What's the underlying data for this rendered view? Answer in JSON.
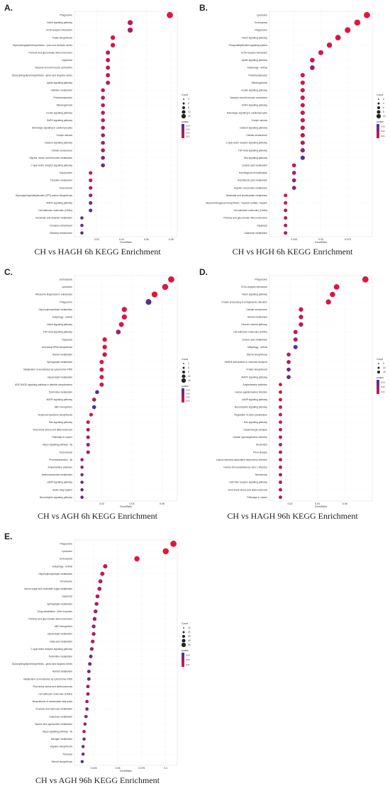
{
  "chart_data": [
    {
      "type": "scatter",
      "panel": "A.",
      "caption": "CH vs HAGH 6h KEGG Enrichment",
      "xlabel": "GeneRatio",
      "xticks": [
        0.02,
        0.04,
        0.06,
        0.08
      ],
      "xlim": [
        0.002,
        0.085
      ],
      "legend_count_title": "Count",
      "legend_count_values": [
        "3",
        "6",
        "9",
        "12",
        "15"
      ],
      "legend_p_title": "pvalue",
      "legend_p_values": [
        "0.04",
        "0.03",
        "0.02",
        "0.01"
      ],
      "categories": [
        "Phagosome",
        "Notch signaling pathway",
        "ECM-receptor interaction",
        "Folate biosynthesis",
        "Glycosphingolipid biosynthesis - lacto and neolacto series",
        "Pentose and glucuronate interconversions",
        "Apoptosis",
        "Vascular smooth muscle contraction",
        "Glycosphingolipid biosynthesis - globo and isoglobo series",
        "Apelin signaling pathway",
        "Histidine metabolism",
        "Phototransduction",
        "Melanogenesis",
        "Insulin signaling pathway",
        "GnRH signaling pathway",
        "Adrenergic signaling in cardiomyocytes",
        "Oocyte meiosis",
        "Calcium signaling pathway",
        "Cellular senescence",
        "Glycine, serine and threonine metabolism",
        "C-type lectin receptor signaling pathway",
        "Gap junction",
        "Thiamine metabolism",
        "Tuberculosis",
        "Glycosylphosphatidylinositol (GPI)-anchor biosynthesis",
        "MAPK signaling pathway",
        "Cell adhesion molecules (CAMs)",
        "Ascorbate and aldarate metabolism",
        "Circadian entrainment",
        "Olfactory transduction"
      ],
      "x": [
        0.079,
        0.047,
        0.047,
        0.033,
        0.033,
        0.029,
        0.029,
        0.029,
        0.029,
        0.029,
        0.025,
        0.025,
        0.025,
        0.025,
        0.025,
        0.025,
        0.025,
        0.025,
        0.025,
        0.025,
        0.025,
        0.015,
        0.015,
        0.015,
        0.015,
        0.015,
        0.015,
        0.008,
        0.008,
        0.008
      ],
      "count": [
        15,
        9,
        9,
        6,
        6,
        5,
        5,
        5,
        5,
        5,
        4,
        4,
        4,
        4,
        4,
        4,
        4,
        4,
        4,
        4,
        4,
        3,
        3,
        3,
        3,
        3,
        3,
        2,
        2,
        2
      ],
      "pvalue": [
        0.001,
        0.01,
        0.02,
        0.005,
        0.005,
        0.01,
        0.01,
        0.01,
        0.01,
        0.015,
        0.01,
        0.015,
        0.015,
        0.015,
        0.015,
        0.02,
        0.02,
        0.02,
        0.02,
        0.03,
        0.035,
        0.01,
        0.01,
        0.015,
        0.02,
        0.03,
        0.04,
        0.04,
        0.04,
        0.045
      ]
    },
    {
      "type": "scatter",
      "panel": "B.",
      "caption": "CH vs HGH 6h KEGG Enrichment",
      "xlabel": "GeneRatio",
      "xticks": [
        0.025,
        0.05,
        0.075
      ],
      "xlim": [
        0.002,
        0.098
      ],
      "legend_count_title": "Count",
      "legend_count_values": [
        "2",
        "4",
        "6",
        "8",
        "10"
      ],
      "legend_p_title": "pvalue",
      "legend_p_values": [
        "0.03",
        "0.02",
        "0.01"
      ],
      "categories": [
        "Lysosome",
        "Endocytosis",
        "Phagosome",
        "Notch signaling pathway",
        "Phosphatidylinositol signaling system",
        "ECM-receptor interaction",
        "Apelin signaling pathway",
        "Autophagy - animal",
        "Phototransduction",
        "Melanogenesis",
        "Insulin signaling pathway",
        "Vascular smooth muscle contraction",
        "GnRH signaling pathway",
        "Adrenergic signaling in cardiomyocytes",
        "Oocyte meiosis",
        "Calcium signaling pathway",
        "Cellular senescence",
        "C-type lectin receptor signaling pathway",
        "TGF-beta signaling pathway",
        "Wnt signaling pathway",
        "Linoleic acid metabolism",
        "Homologous recombination",
        "Arachidonic acid metabolism",
        "Arginine and proline metabolism",
        "Nicotinate and nicotinamide metabolism",
        "Glycosaminoglycan biosynthesis - heparan sulfate / heparin",
        "Cell adhesion molecules (CAMs)",
        "Pentose and glucuronate interconversions",
        "Apoptosis",
        "Galactose metabolism"
      ],
      "x": [
        0.093,
        0.084,
        0.075,
        0.066,
        0.058,
        0.05,
        0.042,
        0.042,
        0.033,
        0.033,
        0.033,
        0.033,
        0.033,
        0.033,
        0.033,
        0.033,
        0.033,
        0.033,
        0.033,
        0.033,
        0.025,
        0.025,
        0.025,
        0.025,
        0.017,
        0.017,
        0.017,
        0.017,
        0.017,
        0.017
      ],
      "count": [
        11,
        10,
        9,
        8,
        7,
        6,
        5,
        5,
        4,
        4,
        4,
        4,
        4,
        4,
        4,
        4,
        4,
        4,
        4,
        4,
        3,
        3,
        3,
        3,
        2,
        2,
        2,
        2,
        2,
        2
      ],
      "pvalue": [
        0.001,
        0.001,
        0.002,
        0.003,
        0.004,
        0.005,
        0.008,
        0.02,
        0.005,
        0.005,
        0.006,
        0.006,
        0.007,
        0.007,
        0.008,
        0.008,
        0.01,
        0.012,
        0.02,
        0.035,
        0.01,
        0.015,
        0.02,
        0.025,
        0.005,
        0.008,
        0.01,
        0.01,
        0.012,
        0.015
      ]
    },
    {
      "type": "scatter",
      "panel": "C.",
      "caption": "CH vs AGH 6h KEGG Enrichment",
      "xlabel": "GeneRatio",
      "xticks": [
        0.02,
        0.04,
        0.06
      ],
      "xlim": [
        0.002,
        0.07
      ],
      "legend_count_title": "Count",
      "legend_count_values": [
        "3",
        "6",
        "9",
        "12",
        "15"
      ],
      "legend_p_title": "pvalue",
      "legend_p_values": [
        "0.04",
        "0.03",
        "0.02",
        "0.01"
      ],
      "categories": [
        "Endocytosis",
        "Lysosome",
        "Ribosome biogenesis in eukaryotes",
        "Phagosome",
        "Glycerophospholipid metabolism",
        "Autophagy - animal",
        "Notch signaling pathway",
        "TGF-beta signaling pathway",
        "Apoptosis",
        "Aminoacyl-tRNA biosynthesis",
        "Retinol metabolism",
        "Sphingolipid metabolism",
        "Metabolism of xenobiotics by cytochrome P450",
        "Glycerolipid metabolism",
        "AGE-RAGE signaling pathway in diabetic complications",
        "Pyrimidine metabolism",
        "MAPK signaling pathway",
        "ABC transporters",
        "Terpenoid backbone biosynthesis",
        "Ras signaling pathway",
        "Fluid shear stress and atherosclerosis",
        "Pathways in cancer",
        "Hippo signaling pathway - fly",
        "Tuberculosis",
        "Phototransduction - fly",
        "Amphetamine addiction",
        "Selenocompound metabolism",
        "cAMP signaling pathway",
        "Sulfur relay system",
        "Neurotrophin signaling pathway"
      ],
      "x": [
        0.066,
        0.062,
        0.055,
        0.051,
        0.035,
        0.035,
        0.033,
        0.031,
        0.022,
        0.022,
        0.022,
        0.02,
        0.02,
        0.02,
        0.02,
        0.017,
        0.015,
        0.015,
        0.013,
        0.011,
        0.011,
        0.011,
        0.011,
        0.011,
        0.007,
        0.007,
        0.007,
        0.007,
        0.007,
        0.007
      ],
      "count": [
        15,
        14,
        13,
        12,
        9,
        9,
        8,
        7,
        6,
        6,
        6,
        5,
        5,
        5,
        5,
        4,
        4,
        4,
        3,
        3,
        3,
        3,
        3,
        3,
        2,
        2,
        2,
        2,
        2,
        2
      ],
      "pvalue": [
        0.001,
        0.001,
        0.001,
        0.04,
        0.002,
        0.002,
        0.005,
        0.02,
        0.003,
        0.003,
        0.004,
        0.005,
        0.006,
        0.006,
        0.007,
        0.035,
        0.015,
        0.04,
        0.005,
        0.01,
        0.015,
        0.015,
        0.02,
        0.02,
        0.02,
        0.025,
        0.025,
        0.03,
        0.03,
        0.035
      ]
    },
    {
      "type": "scatter",
      "panel": "D.",
      "caption": "CH vs HAGH 96h KEGG Enrichment",
      "xlabel": "GeneRatio",
      "xticks": [
        0.02,
        0.04,
        0.06
      ],
      "xlim": [
        0.005,
        0.08
      ],
      "legend_count_title": "Count",
      "legend_count_values": [
        "5",
        "10",
        "15"
      ],
      "legend_p_title": "pvalue",
      "legend_p_values": [
        "0.03",
        "0.02",
        "0.01"
      ],
      "categories": [
        "Phagosome",
        "ECM-receptor interaction",
        "Notch signaling pathway",
        "Protein processing in endoplasmic reticulum",
        "Cellular senescence",
        "Retinol metabolism",
        "Fanconi anemia pathway",
        "Cell adhesion molecules (CAMs)",
        "Linoleic acid metabolism",
        "Mitophagy - animal",
        "Steroid biosynthesis",
        "SNARE interactions in vesicular transport",
        "Protein biosynthesis",
        "MAPK signaling pathway",
        "Amphetamine addiction",
        "Human papillomavirus infection",
        "cAMP signaling pathway",
        "Neurotrophin signaling pathway",
        "Regulation of actin cytoskeleton",
        "Ras signaling pathway",
        "Dopaminergic synapse",
        "Human cytomegalovirus infection",
        "Alcoholism",
        "Prion disease",
        "Kaposi sarcoma-associated herpesvirus infection",
        "Human immunodeficiency virus 1 infection",
        "Necroptosis",
        "NOD-like receptor signaling pathway",
        "Fluid shear stress and atherosclerosis",
        "Pathways in cancer"
      ],
      "x": [
        0.075,
        0.054,
        0.051,
        0.048,
        0.028,
        0.028,
        0.028,
        0.024,
        0.024,
        0.024,
        0.019,
        0.019,
        0.019,
        0.019,
        0.013,
        0.013,
        0.013,
        0.013,
        0.013,
        0.013,
        0.013,
        0.013,
        0.013,
        0.013,
        0.013,
        0.013,
        0.013,
        0.013,
        0.013,
        0.013
      ],
      "count": [
        18,
        13,
        12,
        11,
        7,
        7,
        7,
        6,
        6,
        6,
        5,
        5,
        5,
        5,
        3,
        3,
        3,
        3,
        3,
        3,
        3,
        3,
        3,
        3,
        3,
        3,
        3,
        3,
        3,
        3
      ],
      "pvalue": [
        0.001,
        0.002,
        0.003,
        0.004,
        0.005,
        0.006,
        0.01,
        0.008,
        0.012,
        0.03,
        0.008,
        0.015,
        0.02,
        0.025,
        0.003,
        0.004,
        0.005,
        0.005,
        0.006,
        0.006,
        0.007,
        0.007,
        0.008,
        0.008,
        0.009,
        0.009,
        0.01,
        0.01,
        0.011,
        0.012
      ]
    },
    {
      "type": "scatter",
      "panel": "E.",
      "caption": "CH vs AGH 96h KEGG Enrichment",
      "xlabel": "GeneRatio",
      "xticks": [
        0.025,
        0.05,
        0.075,
        0.1
      ],
      "xlim": [
        0.005,
        0.112
      ],
      "legend_count_title": "Count",
      "legend_count_values": [
        "10",
        "20",
        "30",
        "40",
        "50"
      ],
      "legend_p_title": "pvalue",
      "legend_p_values": [
        "0.03",
        "0.02",
        "0.01"
      ],
      "categories": [
        "Phagosome",
        "Lysosome",
        "Endocytosis",
        "Autophagy - animal",
        "Glycerophospholipid metabolism",
        "Peroxisome",
        "Amino sugar and nucleotide sugar metabolism",
        "Apoptosis",
        "Sphingolipid metabolism",
        "Drug metabolism - other enzymes",
        "Pentose and glucuronate interconversions",
        "ABC transporters",
        "Glycerolipid metabolism",
        "Fatty acid metabolism",
        "C-type lectin receptor signaling pathway",
        "Pyrimidine metabolism",
        "Glycosphingolipid biosynthesis - globo and isoglobo series",
        "Retinol metabolism",
        "Metabolism of xenobiotics by cytochrome P450",
        "Fluid shear stress and atherosclerosis",
        "Cell adhesion molecules (CAMs)",
        "Biosynthesis of unsaturated fatty acids",
        "Fructose and mannose metabolism",
        "Galactose metabolism",
        "Taurine and hypotaurine metabolism",
        "Hippo signaling pathway - fly",
        "Nitrogen metabolism",
        "Arginine biosynthesis",
        "Pertussis",
        "Steroid biosynthesis"
      ],
      "x": [
        0.108,
        0.1,
        0.07,
        0.037,
        0.034,
        0.032,
        0.031,
        0.029,
        0.028,
        0.027,
        0.026,
        0.025,
        0.025,
        0.024,
        0.023,
        0.022,
        0.021,
        0.02,
        0.02,
        0.019,
        0.019,
        0.018,
        0.018,
        0.017,
        0.016,
        0.015,
        0.015,
        0.014,
        0.014,
        0.013
      ],
      "count": [
        52,
        48,
        34,
        18,
        17,
        16,
        15,
        14,
        13,
        13,
        12,
        12,
        12,
        11,
        11,
        10,
        10,
        9,
        9,
        9,
        9,
        8,
        8,
        8,
        7,
        7,
        7,
        6,
        6,
        6
      ],
      "pvalue": [
        0.001,
        0.001,
        0.001,
        0.005,
        0.008,
        0.01,
        0.01,
        0.012,
        0.012,
        0.015,
        0.015,
        0.02,
        0.012,
        0.012,
        0.015,
        0.02,
        0.02,
        0.025,
        0.02,
        0.015,
        0.015,
        0.015,
        0.015,
        0.02,
        0.015,
        0.015,
        0.02,
        0.025,
        0.025,
        0.03
      ]
    }
  ]
}
